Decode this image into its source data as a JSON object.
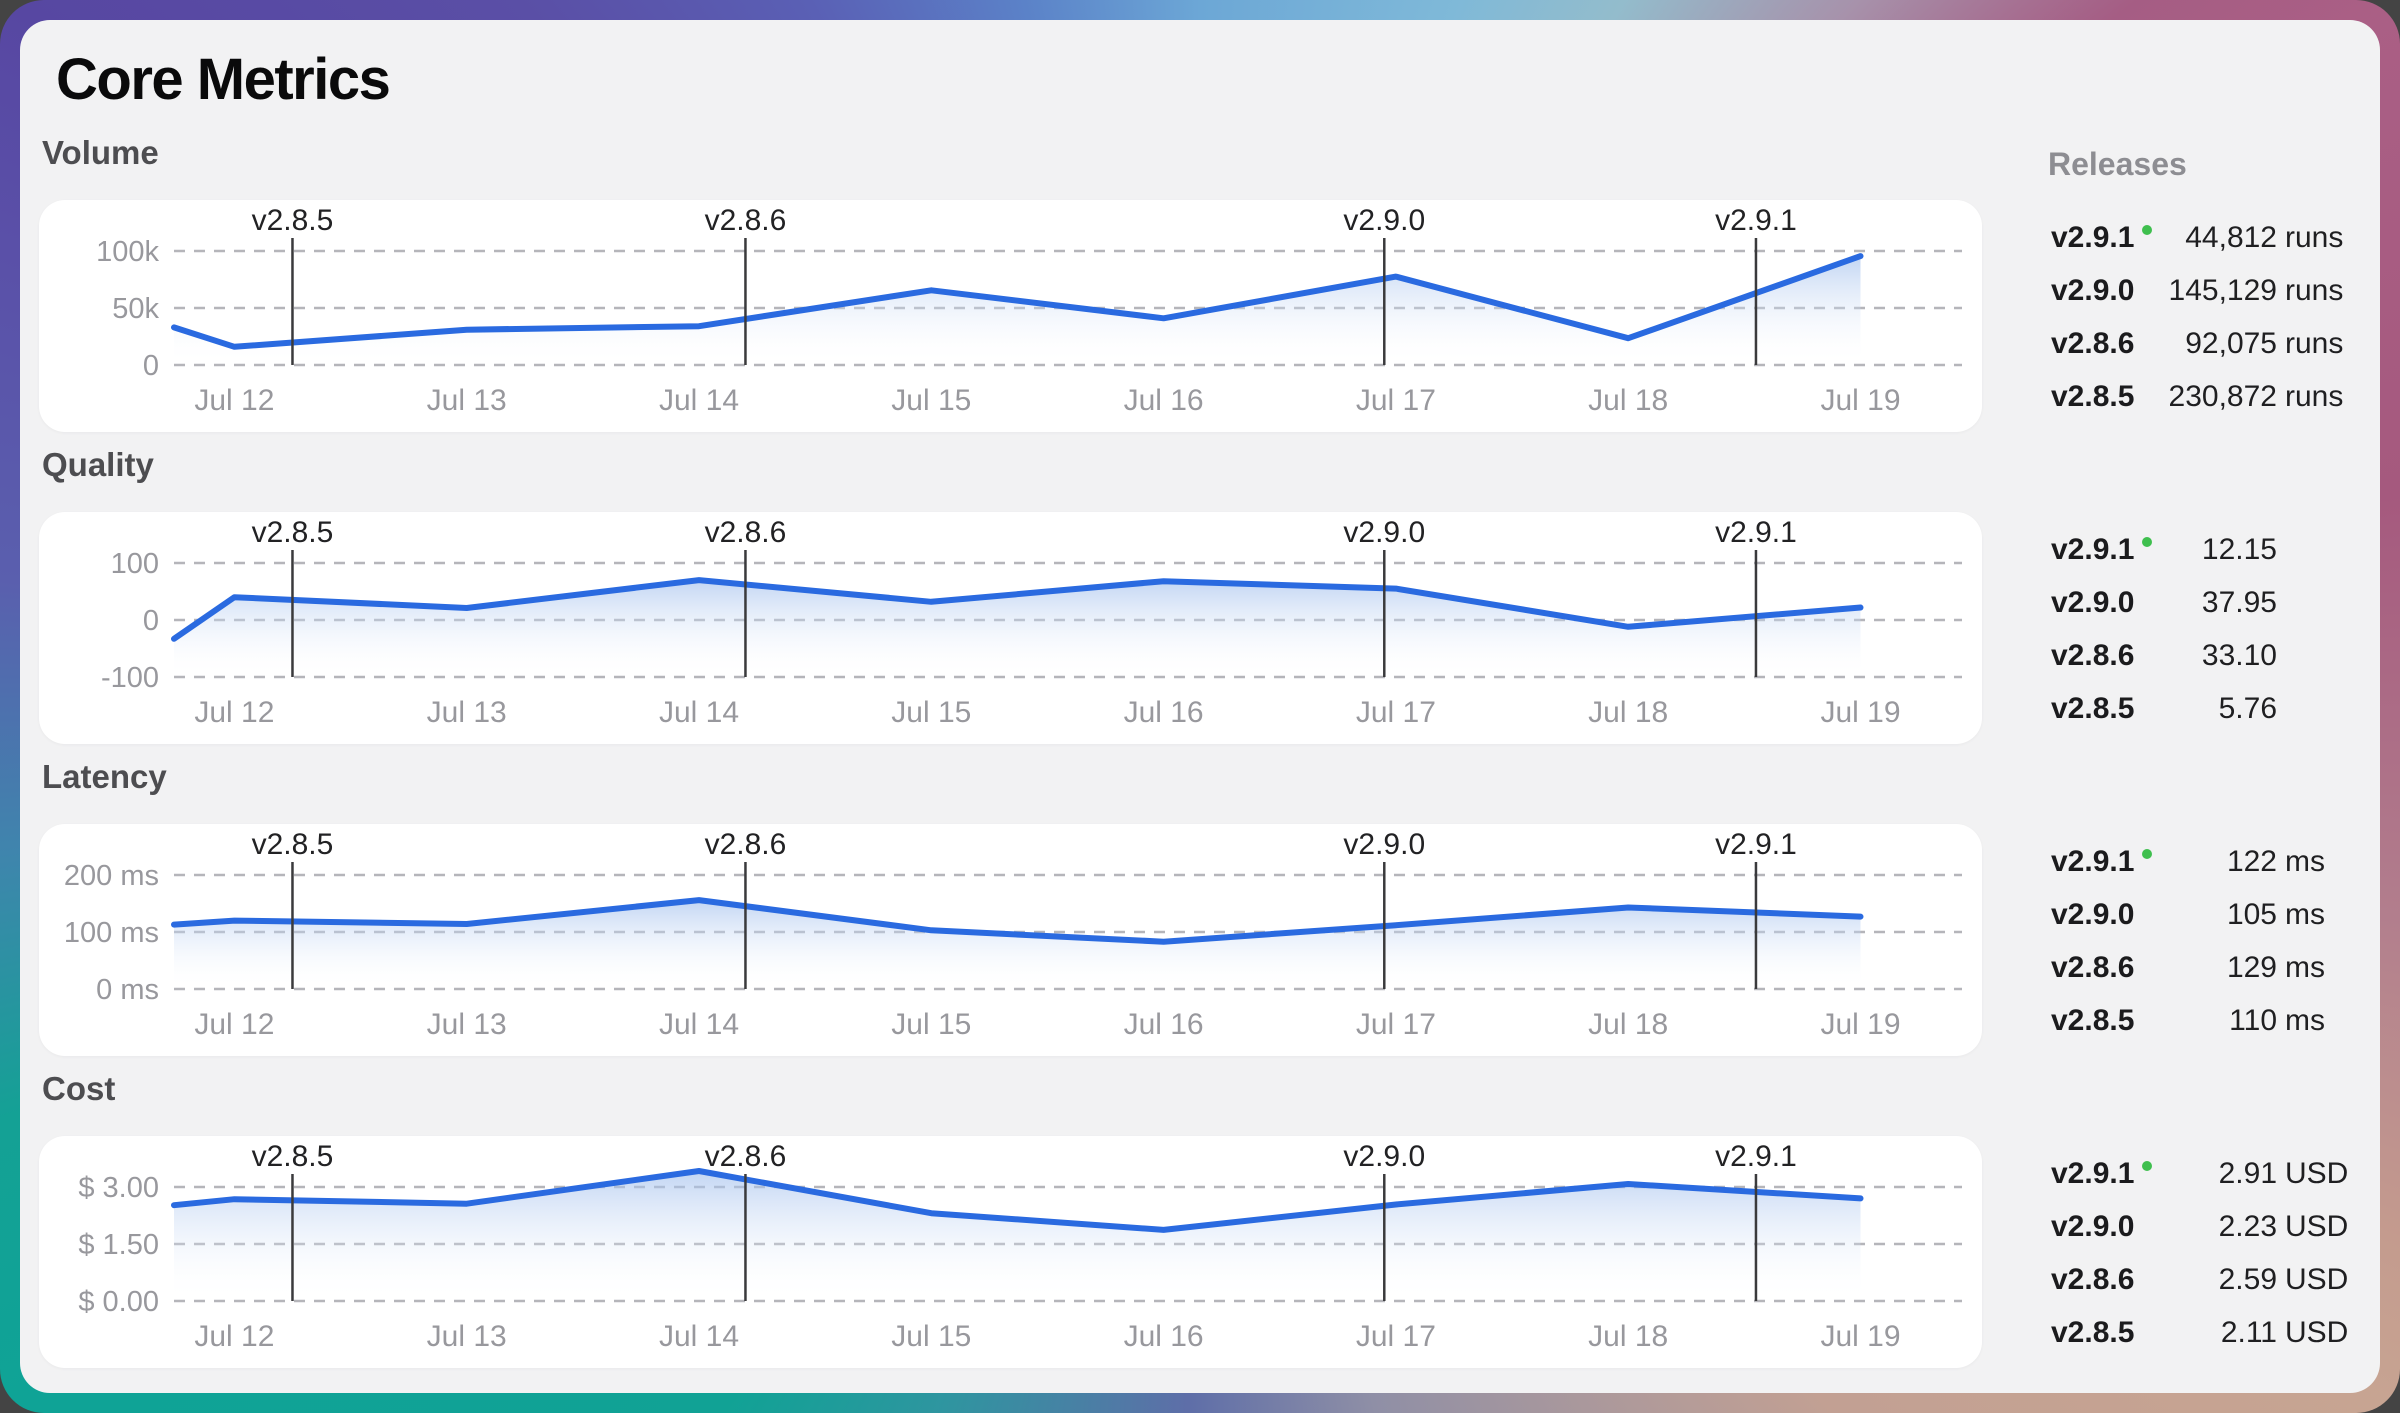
{
  "title": "Core Metrics",
  "releases_header": "Releases",
  "colors": {
    "accent_blue": "#2a6ae0",
    "current_release_dot": "#3fbf4e",
    "marker_line": "#3a3a3c",
    "grid_line": "#b5b5ba",
    "axis_text": "#98989d"
  },
  "x_axis": {
    "tick_labels": [
      "Jul 12",
      "Jul 13",
      "Jul 14",
      "Jul 15",
      "Jul 16",
      "Jul 17",
      "Jul 18",
      "Jul 19"
    ],
    "tick_days": [
      12,
      13,
      14,
      15,
      16,
      17,
      18,
      19
    ]
  },
  "sections": [
    {
      "label": "Volume",
      "releases": [
        {
          "version": "v2.9.1",
          "current": true,
          "value": "44,812",
          "unit": "runs"
        },
        {
          "version": "v2.9.0",
          "current": false,
          "value": "145,129",
          "unit": "runs"
        },
        {
          "version": "v2.8.6",
          "current": false,
          "value": "92,075",
          "unit": "runs"
        },
        {
          "version": "v2.8.5",
          "current": false,
          "value": "230,872",
          "unit": "runs"
        }
      ]
    },
    {
      "label": "Quality",
      "releases": [
        {
          "version": "v2.9.1",
          "current": true,
          "value": "12.15",
          "unit": ""
        },
        {
          "version": "v2.9.0",
          "current": false,
          "value": "37.95",
          "unit": ""
        },
        {
          "version": "v2.8.6",
          "current": false,
          "value": "33.10",
          "unit": ""
        },
        {
          "version": "v2.8.5",
          "current": false,
          "value": "5.76",
          "unit": ""
        }
      ]
    },
    {
      "label": "Latency",
      "releases": [
        {
          "version": "v2.9.1",
          "current": true,
          "value": "122",
          "unit": "ms"
        },
        {
          "version": "v2.9.0",
          "current": false,
          "value": "105",
          "unit": "ms"
        },
        {
          "version": "v2.8.6",
          "current": false,
          "value": "129",
          "unit": "ms"
        },
        {
          "version": "v2.8.5",
          "current": false,
          "value": "110",
          "unit": "ms"
        }
      ]
    },
    {
      "label": "Cost",
      "releases": [
        {
          "version": "v2.9.1",
          "current": true,
          "value": "2.91",
          "unit": "USD"
        },
        {
          "version": "v2.9.0",
          "current": false,
          "value": "2.23",
          "unit": "USD"
        },
        {
          "version": "v2.8.6",
          "current": false,
          "value": "2.59",
          "unit": "USD"
        },
        {
          "version": "v2.8.5",
          "current": false,
          "value": "2.11",
          "unit": "USD"
        }
      ]
    }
  ],
  "chart_data": [
    {
      "type": "area",
      "title": "Volume",
      "x": [
        11.74,
        12,
        13,
        14,
        15,
        16,
        17,
        18,
        19
      ],
      "values": [
        33000,
        16000,
        31000,
        34000,
        65500,
        41000,
        77500,
        23500,
        95500
      ],
      "ylim": [
        0,
        100000
      ],
      "yticks": [
        {
          "value": 0,
          "label": "0"
        },
        {
          "value": 50000,
          "label": "50k"
        },
        {
          "value": 100000,
          "label": "100k"
        }
      ],
      "markers": [
        {
          "label": "v2.8.5",
          "day": 12.25
        },
        {
          "label": "v2.8.6",
          "day": 14.2
        },
        {
          "label": "v2.9.0",
          "day": 16.95
        },
        {
          "label": "v2.9.1",
          "day": 18.55
        }
      ],
      "grid": "dashed-horizontal",
      "legend": "none"
    },
    {
      "type": "area",
      "title": "Quality",
      "x": [
        11.74,
        12,
        13,
        14,
        15,
        16,
        17,
        18,
        19
      ],
      "values": [
        -33,
        40,
        21,
        70,
        32,
        68,
        55,
        -12,
        22
      ],
      "ylim": [
        -100,
        100
      ],
      "yticks": [
        {
          "value": -100,
          "label": "-100"
        },
        {
          "value": 0,
          "label": "0"
        },
        {
          "value": 100,
          "label": "100"
        }
      ],
      "markers": [
        {
          "label": "v2.8.5",
          "day": 12.25
        },
        {
          "label": "v2.8.6",
          "day": 14.2
        },
        {
          "label": "v2.9.0",
          "day": 16.95
        },
        {
          "label": "v2.9.1",
          "day": 18.55
        }
      ],
      "grid": "dashed-horizontal",
      "legend": "none"
    },
    {
      "type": "area",
      "title": "Latency",
      "x": [
        11.74,
        12,
        13,
        14,
        15,
        16,
        17,
        18,
        19
      ],
      "values": [
        113,
        120,
        114,
        156,
        103,
        83,
        112,
        143,
        127
      ],
      "ylim": [
        0,
        200
      ],
      "yticks": [
        {
          "value": 0,
          "label": "0 ms"
        },
        {
          "value": 100,
          "label": "100 ms"
        },
        {
          "value": 200,
          "label": "200 ms"
        }
      ],
      "markers": [
        {
          "label": "v2.8.5",
          "day": 12.25
        },
        {
          "label": "v2.8.6",
          "day": 14.2
        },
        {
          "label": "v2.9.0",
          "day": 16.95
        },
        {
          "label": "v2.9.1",
          "day": 18.55
        }
      ],
      "grid": "dashed-horizontal",
      "legend": "none"
    },
    {
      "type": "area",
      "title": "Cost",
      "x": [
        11.74,
        12,
        13,
        14,
        15,
        16,
        17,
        18,
        19
      ],
      "values": [
        2.52,
        2.68,
        2.56,
        3.42,
        2.31,
        1.87,
        2.54,
        3.08,
        2.7
      ],
      "ylim": [
        0,
        3
      ],
      "yticks": [
        {
          "value": 0,
          "label": "$ 0.00"
        },
        {
          "value": 1.5,
          "label": "$ 1.50"
        },
        {
          "value": 3,
          "label": "$ 3.00"
        }
      ],
      "markers": [
        {
          "label": "v2.8.5",
          "day": 12.25
        },
        {
          "label": "v2.8.6",
          "day": 14.2
        },
        {
          "label": "v2.9.0",
          "day": 16.95
        },
        {
          "label": "v2.9.1",
          "day": 18.55
        }
      ],
      "grid": "dashed-horizontal",
      "legend": "none"
    }
  ]
}
